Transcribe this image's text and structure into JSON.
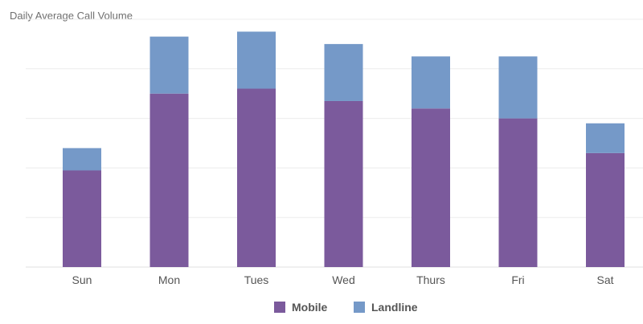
{
  "chart_data": {
    "type": "bar",
    "stacked": true,
    "title": "Daily Average Call Volume",
    "xlabel": "",
    "ylabel": "",
    "categories": [
      "Sun",
      "Mon",
      "Tues",
      "Wed",
      "Thurs",
      "Fri",
      "Sat"
    ],
    "series": [
      {
        "name": "Mobile",
        "color": "#7b5a9c",
        "values": [
          39,
          70,
          72,
          67,
          64,
          60,
          46
        ]
      },
      {
        "name": "Landline",
        "color": "#7599c8",
        "values": [
          9,
          23,
          23,
          23,
          21,
          25,
          12
        ]
      }
    ],
    "ylim": [
      0,
      100
    ],
    "y_ticks_visible": false,
    "grid": true,
    "legend": "bottom-center"
  }
}
